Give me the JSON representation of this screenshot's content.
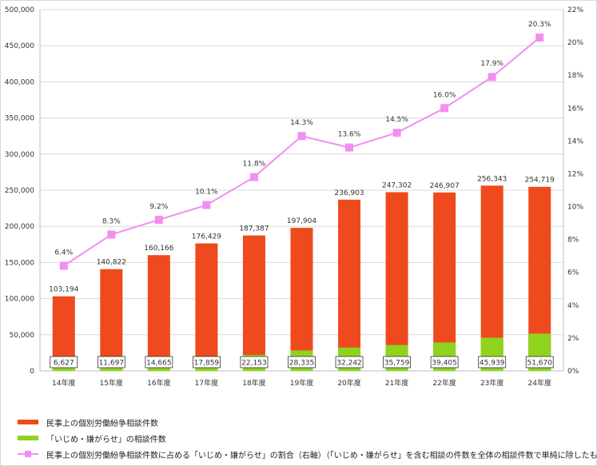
{
  "colors": {
    "total_bar": "#ef4a1d",
    "bullying_bar": "#8ed31d",
    "ratio_line": "#f28ef0",
    "grid": "#d9d9d9",
    "axis_text": "#333333"
  },
  "chart_data": {
    "type": "bar",
    "categories": [
      "14年度",
      "15年度",
      "16年度",
      "17年度",
      "18年度",
      "19年度",
      "20年度",
      "21年度",
      "22年度",
      "23年度",
      "24年度"
    ],
    "series": [
      {
        "name": "民事上の個別労働紛争相談件数",
        "type": "bar",
        "axis": "left",
        "values": [
          103194,
          140822,
          160166,
          176429,
          187387,
          197904,
          236903,
          247302,
          246907,
          256343,
          254719
        ],
        "labels": [
          "103,194",
          "140,822",
          "160,166",
          "176,429",
          "187,387",
          "197,904",
          "236,903",
          "247,302",
          "246,907",
          "256,343",
          "254,719"
        ]
      },
      {
        "name": "「いじめ・嫌がらせ」の相談件数",
        "type": "bar",
        "axis": "left",
        "values": [
          6627,
          11697,
          14665,
          17859,
          22153,
          28335,
          32242,
          35759,
          39405,
          45939,
          51670
        ],
        "labels": [
          "6,627",
          "11,697",
          "14,665",
          "17,859",
          "22,153",
          "28,335",
          "32,242",
          "35,759",
          "39,405",
          "45,939",
          "51,670"
        ]
      },
      {
        "name": "民事上の個別労働紛争相談件数に占める「いじめ・嫌がらせ」の割合（右軸）（「いじめ・嫌がらせ」を含む相談の件数を全体の相談件数で単純に除したもの。）",
        "type": "line",
        "axis": "right",
        "values": [
          6.4,
          8.3,
          9.2,
          10.1,
          11.8,
          14.3,
          13.6,
          14.5,
          16.0,
          17.9,
          20.3
        ],
        "labels": [
          "6.4%",
          "8.3%",
          "9.2%",
          "10.1%",
          "11.8%",
          "14.3%",
          "13.6%",
          "14.5%",
          "16.0%",
          "17.9%",
          "20.3%"
        ]
      }
    ],
    "left_axis": {
      "ylim": [
        0,
        500000
      ],
      "ticks": [
        0,
        50000,
        100000,
        150000,
        200000,
        250000,
        300000,
        350000,
        400000,
        450000,
        500000
      ],
      "tick_labels": [
        "0",
        "50,000",
        "100,000",
        "150,000",
        "200,000",
        "250,000",
        "300,000",
        "350,000",
        "400,000",
        "450,000",
        "500,000"
      ]
    },
    "right_axis": {
      "ylim": [
        0,
        22
      ],
      "ticks": [
        0,
        2,
        4,
        6,
        8,
        10,
        12,
        14,
        16,
        18,
        20,
        22
      ],
      "tick_labels": [
        "0%",
        "2%",
        "4%",
        "6%",
        "8%",
        "10%",
        "12%",
        "14%",
        "16%",
        "18%",
        "20%",
        "22%"
      ]
    },
    "grid": true,
    "legend_position": "bottom"
  }
}
